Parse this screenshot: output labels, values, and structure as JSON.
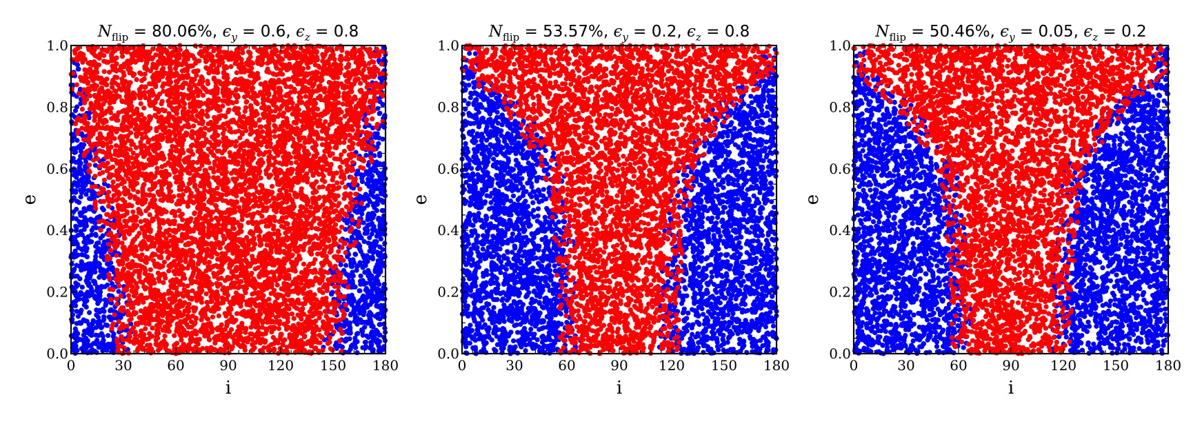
{
  "chart_data": [
    {
      "type": "scatter",
      "title": {
        "var_main": "N",
        "var_sub": "flip",
        "eq1": " = ",
        "value1": "80.06%, ",
        "e2": "ϵ",
        "e2_sub": "y",
        "eq2": " = ",
        "value2": "0.6, ",
        "e3": "ϵ",
        "e3_sub": "z",
        "eq3": " = ",
        "value3": "0.8"
      },
      "xlabel": "i",
      "ylabel": "e",
      "xlim": [
        0,
        180
      ],
      "ylim": [
        0,
        1
      ],
      "xticks": [
        "0",
        "30",
        "60",
        "90",
        "120",
        "150",
        "180"
      ],
      "xtick_values": [
        0,
        30,
        60,
        90,
        120,
        150,
        180
      ],
      "yticks": [
        "0.0",
        "0.2",
        "0.4",
        "0.6",
        "0.8",
        "1.0"
      ],
      "ytick_values": [
        0,
        0.2,
        0.4,
        0.6,
        0.8,
        1.0
      ],
      "grid": false,
      "colors": {
        "flipped": "#ff0000",
        "not_flipped": "#0000ff"
      },
      "flip_fraction": 0.8006,
      "flip_band_edges_by_e": [
        [
          0.0,
          30,
          150
        ],
        [
          0.2,
          28,
          152
        ],
        [
          0.4,
          22,
          158
        ],
        [
          0.6,
          15,
          165
        ],
        [
          0.8,
          5,
          175
        ],
        [
          1.0,
          0,
          180
        ]
      ],
      "n_points": 7500
    },
    {
      "type": "scatter",
      "title": {
        "var_main": "N",
        "var_sub": "flip",
        "eq1": " = ",
        "value1": "53.57%, ",
        "e2": "ϵ",
        "e2_sub": "y",
        "eq2": " = ",
        "value2": "0.2, ",
        "e3": "ϵ",
        "e3_sub": "z",
        "eq3": " = ",
        "value3": "0.8"
      },
      "xlabel": "i",
      "ylabel": "e",
      "xlim": [
        0,
        180
      ],
      "ylim": [
        0,
        1
      ],
      "xticks": [
        "0",
        "30",
        "60",
        "90",
        "120",
        "150",
        "180"
      ],
      "xtick_values": [
        0,
        30,
        60,
        90,
        120,
        150,
        180
      ],
      "yticks": [
        "0.0",
        "0.2",
        "0.4",
        "0.6",
        "0.8",
        "1.0"
      ],
      "ytick_values": [
        0,
        0.2,
        0.4,
        0.6,
        0.8,
        1.0
      ],
      "grid": false,
      "colors": {
        "flipped": "#ff0000",
        "not_flipped": "#0000ff"
      },
      "flip_fraction": 0.5357,
      "flip_band_edges_by_e": [
        [
          0.0,
          62,
          118
        ],
        [
          0.2,
          61,
          119
        ],
        [
          0.4,
          58,
          122
        ],
        [
          0.6,
          52,
          128
        ],
        [
          0.8,
          30,
          150
        ],
        [
          0.9,
          8,
          172
        ],
        [
          1.0,
          0,
          180
        ]
      ],
      "n_points": 7500
    },
    {
      "type": "scatter",
      "title": {
        "var_main": "N",
        "var_sub": "flip",
        "eq1": " = ",
        "value1": "50.46%, ",
        "e2": "ϵ",
        "e2_sub": "y",
        "eq2": " = ",
        "value2": "0.05, ",
        "e3": "ϵ",
        "e3_sub": "z",
        "eq3": " = ",
        "value3": "0.2"
      },
      "xlabel": "i",
      "ylabel": "e",
      "xlim": [
        0,
        180
      ],
      "ylim": [
        0,
        1
      ],
      "xticks": [
        "0",
        "30",
        "60",
        "90",
        "120",
        "150",
        "180"
      ],
      "xtick_values": [
        0,
        30,
        60,
        90,
        120,
        150,
        180
      ],
      "yticks": [
        "0.0",
        "0.2",
        "0.4",
        "0.6",
        "0.8",
        "1.0"
      ],
      "ytick_values": [
        0,
        0.2,
        0.4,
        0.6,
        0.8,
        1.0
      ],
      "grid": false,
      "colors": {
        "flipped": "#ff0000",
        "not_flipped": "#0000ff"
      },
      "flip_fraction": 0.5046,
      "flip_band_edges_by_e": [
        [
          0.0,
          62,
          118
        ],
        [
          0.2,
          61,
          119
        ],
        [
          0.4,
          58,
          122
        ],
        [
          0.6,
          54,
          126
        ],
        [
          0.8,
          30,
          150
        ],
        [
          0.9,
          8,
          172
        ],
        [
          1.0,
          0,
          180
        ]
      ],
      "n_points": 7500
    }
  ]
}
